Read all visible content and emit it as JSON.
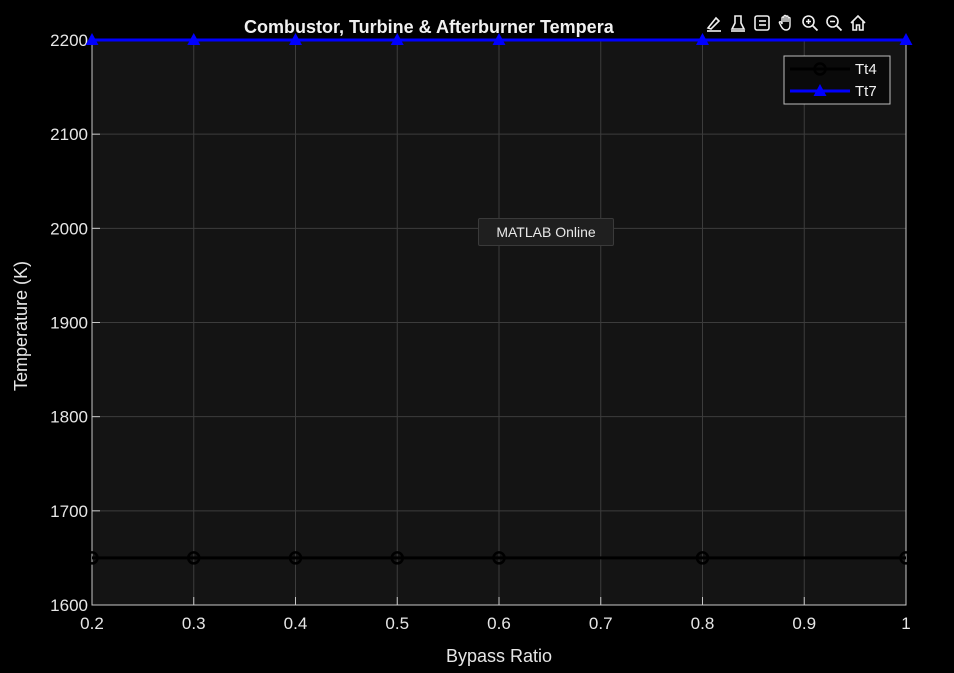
{
  "overlay": {
    "label": "MATLAB Online"
  },
  "toolbar": {
    "icons": [
      "brush-icon",
      "data-tips-icon",
      "legend-toggle-icon",
      "pan-hand-icon",
      "zoom-in-icon",
      "zoom-out-icon",
      "home-icon"
    ]
  },
  "colors": {
    "background": "#000000",
    "axes": "#141414",
    "grid": "#3c3c3c",
    "tt4": "#000000",
    "tt7": "#0000ff"
  },
  "chart_data": {
    "type": "line",
    "title": "Combustor, Turbine & Afterburner Tempera",
    "xlabel": "Bypass Ratio",
    "ylabel": "Temperature (K)",
    "xlim": [
      0.2,
      1
    ],
    "ylim": [
      1600,
      2200
    ],
    "xticks": [
      "0.2",
      "0.3",
      "0.4",
      "0.5",
      "0.6",
      "0.7",
      "0.8",
      "0.9",
      "1"
    ],
    "yticks": [
      "1600",
      "1700",
      "1800",
      "1900",
      "2000",
      "2100",
      "2200"
    ],
    "grid": true,
    "legend_position": "top-right",
    "series": [
      {
        "name": "Tt4",
        "marker": "circle",
        "color": "#000000",
        "x": [
          0.2,
          0.3,
          0.4,
          0.5,
          0.6,
          0.8,
          1
        ],
        "y": [
          1650,
          1650,
          1650,
          1650,
          1650,
          1650,
          1650
        ]
      },
      {
        "name": "Tt7",
        "marker": "triangle",
        "color": "#0000ff",
        "x": [
          0.2,
          0.3,
          0.4,
          0.5,
          0.6,
          0.8,
          1
        ],
        "y": [
          2200,
          2200,
          2200,
          2200,
          2200,
          2200,
          2200
        ]
      }
    ]
  }
}
